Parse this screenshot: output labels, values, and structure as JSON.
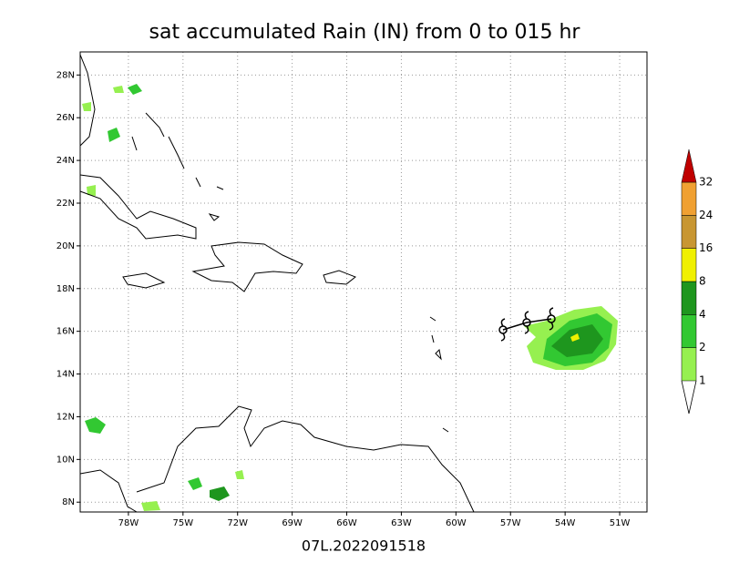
{
  "map": {
    "title": "sat accumulated Rain (IN) from 0 to 015 hr",
    "footer": "07L.2022091518",
    "lonlim": [
      -80.65,
      -49.5
    ],
    "latlim": [
      7.54,
      29.08
    ],
    "lon_ticks": [
      {
        "value": -78,
        "label": "78W"
      },
      {
        "value": -75,
        "label": "75W"
      },
      {
        "value": -72,
        "label": "72W"
      },
      {
        "value": -69,
        "label": "69W"
      },
      {
        "value": -66,
        "label": "66W"
      },
      {
        "value": -63,
        "label": "63W"
      },
      {
        "value": -60,
        "label": "60W"
      },
      {
        "value": -57,
        "label": "57W"
      },
      {
        "value": -54,
        "label": "54W"
      },
      {
        "value": -51,
        "label": "51W"
      }
    ],
    "lat_ticks": [
      {
        "value": 8,
        "label": "8N"
      },
      {
        "value": 10,
        "label": "10N"
      },
      {
        "value": 12,
        "label": "12N"
      },
      {
        "value": 14,
        "label": "14N"
      },
      {
        "value": 16,
        "label": "16N"
      },
      {
        "value": 18,
        "label": "18N"
      },
      {
        "value": 20,
        "label": "20N"
      },
      {
        "value": 22,
        "label": "22N"
      },
      {
        "value": 24,
        "label": "24N"
      },
      {
        "value": 26,
        "label": "26N"
      },
      {
        "value": 28,
        "label": "28N"
      }
    ],
    "colorbar": {
      "levels": [
        1,
        2,
        4,
        8,
        16,
        24,
        32
      ],
      "colors": [
        "#96f050",
        "#32c832",
        "#1e961e",
        "#f0f000",
        "#c89632",
        "#f0a032"
      ],
      "over_color": "#c00000"
    }
  }
}
